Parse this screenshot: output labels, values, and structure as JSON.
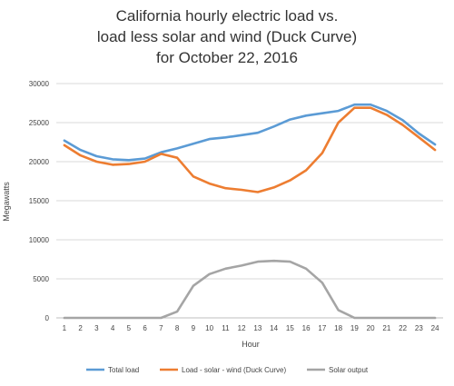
{
  "chart_data": {
    "type": "line",
    "title_lines": [
      "California hourly electric load vs.",
      "load less solar and wind (Duck Curve)",
      "for October 22, 2016"
    ],
    "xlabel": "Hour",
    "ylabel": "Megawatts",
    "x": [
      1,
      2,
      3,
      4,
      5,
      6,
      7,
      8,
      9,
      10,
      11,
      12,
      13,
      14,
      15,
      16,
      17,
      18,
      19,
      20,
      21,
      22,
      23,
      24
    ],
    "ylim": [
      0,
      30000
    ],
    "yticks": [
      0,
      5000,
      10000,
      15000,
      20000,
      25000,
      30000
    ],
    "grid": true,
    "legend_position": "bottom",
    "series": [
      {
        "name": "Total load",
        "color": "#5b9bd5",
        "values": [
          22700,
          21500,
          20700,
          20300,
          20200,
          20400,
          21200,
          21700,
          22300,
          22900,
          23100,
          23400,
          23700,
          24500,
          25400,
          25900,
          26200,
          26500,
          27300,
          27300,
          26500,
          25300,
          23600,
          22200
        ]
      },
      {
        "name": "Load - solar - wind (Duck Curve)",
        "color": "#ed7d31",
        "values": [
          22100,
          20800,
          20000,
          19600,
          19700,
          20000,
          21000,
          20500,
          18100,
          17200,
          16600,
          16400,
          16100,
          16700,
          17600,
          18900,
          21100,
          25000,
          26900,
          26900,
          26000,
          24700,
          23100,
          21500
        ]
      },
      {
        "name": "Solar output",
        "color": "#a5a5a5",
        "values": [
          0,
          0,
          0,
          0,
          0,
          0,
          0,
          800,
          4100,
          5600,
          6300,
          6700,
          7200,
          7300,
          7200,
          6300,
          4500,
          1000,
          0,
          0,
          0,
          0,
          0,
          0
        ]
      }
    ]
  }
}
